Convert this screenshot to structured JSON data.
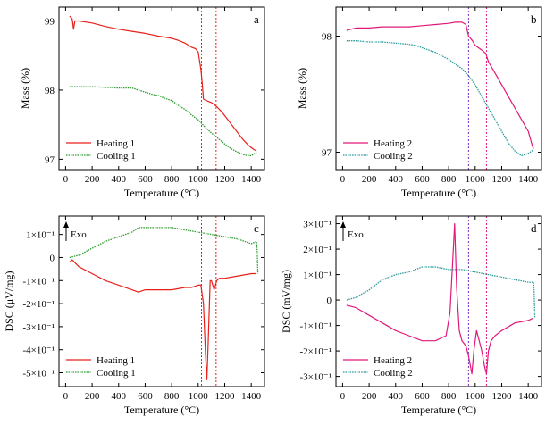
{
  "colors": {
    "heating1": "#e8201a",
    "cooling1": "#2e9a2e",
    "heating2": "#e0197a",
    "cooling2": "#2a9a9a",
    "vline1": "#e8201a",
    "vline2": "#e0197a",
    "vline3": "#7b2fbe"
  },
  "chart_data": [
    {
      "panel": "a",
      "type": "line",
      "xlabel": "Temperature (°C)",
      "ylabel": "Mass (%)",
      "xlim": [
        -50,
        1500
      ],
      "ylim": [
        96.85,
        99.2
      ],
      "xticks": [
        "0",
        "200",
        "400",
        "600",
        "800",
        "1000",
        "1200",
        "1400"
      ],
      "xtick_values": [
        0,
        200,
        400,
        600,
        800,
        1000,
        1200,
        1400
      ],
      "yticks": [
        "97",
        "98",
        "99"
      ],
      "ytick_values": [
        97,
        98,
        99
      ],
      "vlines": [
        1025,
        1135
      ],
      "vline_colors": [
        "#e8201a",
        "#e8201a"
      ],
      "legend_position": "lower-left",
      "series": [
        {
          "name": "Heating 1",
          "color": "#e8201a",
          "style": "solid",
          "x": [
            30,
            50,
            60,
            70,
            100,
            200,
            300,
            400,
            500,
            600,
            700,
            800,
            850,
            900,
            950,
            980,
            1000,
            1020,
            1030,
            1040,
            1060,
            1100,
            1140,
            1180,
            1220,
            1260,
            1300,
            1340,
            1380,
            1420,
            1440
          ],
          "y": [
            99.07,
            99.03,
            98.88,
            99.0,
            99.0,
            98.97,
            98.92,
            98.88,
            98.85,
            98.82,
            98.78,
            98.75,
            98.72,
            98.68,
            98.62,
            98.6,
            98.55,
            98.3,
            98.1,
            97.87,
            97.85,
            97.82,
            97.76,
            97.68,
            97.58,
            97.48,
            97.38,
            97.28,
            97.2,
            97.14,
            97.12
          ]
        },
        {
          "name": "Cooling 1",
          "color": "#2e9a2e",
          "style": "dotted",
          "x": [
            30,
            100,
            200,
            300,
            400,
            500,
            550,
            600,
            650,
            700,
            750,
            800,
            850,
            900,
            950,
            1000,
            1050,
            1100,
            1150,
            1200,
            1250,
            1300,
            1350,
            1400,
            1440
          ],
          "y": [
            98.05,
            98.05,
            98.05,
            98.04,
            98.03,
            98.03,
            98.0,
            97.97,
            97.94,
            97.92,
            97.88,
            97.85,
            97.78,
            97.72,
            97.64,
            97.57,
            97.47,
            97.38,
            97.3,
            97.22,
            97.15,
            97.1,
            97.06,
            97.05,
            97.1
          ]
        }
      ]
    },
    {
      "panel": "b",
      "type": "line",
      "xlabel": "Temperature (°C)",
      "ylabel": "Mass (%)",
      "xlim": [
        -50,
        1500
      ],
      "ylim": [
        96.85,
        98.25
      ],
      "xticks": [
        "0",
        "200",
        "400",
        "600",
        "800",
        "1000",
        "1200",
        "1400"
      ],
      "xtick_values": [
        0,
        200,
        400,
        600,
        800,
        1000,
        1200,
        1400
      ],
      "yticks": [
        "97",
        "98"
      ],
      "ytick_values": [
        97,
        98
      ],
      "vlines": [
        950,
        1085
      ],
      "vline_colors": [
        "#7b2fbe",
        "#e0197a"
      ],
      "legend_position": "lower-left",
      "series": [
        {
          "name": "Heating 2",
          "color": "#e0197a",
          "style": "solid",
          "x": [
            30,
            100,
            200,
            300,
            400,
            500,
            600,
            700,
            800,
            850,
            900,
            930,
            950,
            980,
            1000,
            1050,
            1080,
            1100,
            1150,
            1200,
            1250,
            1300,
            1350,
            1400,
            1430,
            1440
          ],
          "y": [
            98.05,
            98.07,
            98.07,
            98.08,
            98.08,
            98.08,
            98.09,
            98.1,
            98.11,
            98.12,
            98.12,
            98.1,
            98.0,
            97.96,
            97.92,
            97.88,
            97.85,
            97.78,
            97.68,
            97.58,
            97.48,
            97.38,
            97.28,
            97.18,
            97.06,
            97.03
          ]
        },
        {
          "name": "Cooling 2",
          "color": "#2a9a9a",
          "style": "dotted",
          "x": [
            30,
            100,
            200,
            300,
            400,
            500,
            550,
            600,
            650,
            700,
            750,
            800,
            850,
            900,
            950,
            1000,
            1050,
            1100,
            1150,
            1200,
            1250,
            1300,
            1350,
            1400,
            1440
          ],
          "y": [
            97.96,
            97.96,
            97.95,
            97.95,
            97.94,
            97.93,
            97.92,
            97.9,
            97.88,
            97.86,
            97.83,
            97.8,
            97.76,
            97.72,
            97.66,
            97.58,
            97.48,
            97.38,
            97.28,
            97.18,
            97.08,
            97.01,
            96.97,
            96.99,
            97.02
          ]
        }
      ]
    },
    {
      "panel": "c",
      "type": "line",
      "xlabel": "Temperature (°C)",
      "ylabel": "DSC (μV/mg)",
      "xlim": [
        -50,
        1500
      ],
      "ylim": [
        -0.56,
        0.18
      ],
      "xticks": [
        "0",
        "200",
        "400",
        "600",
        "800",
        "1000",
        "1200",
        "1400"
      ],
      "xtick_values": [
        0,
        200,
        400,
        600,
        800,
        1000,
        1200,
        1400
      ],
      "yticks": [
        "1×10⁻¹",
        "0",
        "-1×10⁻¹",
        "-2×10⁻¹",
        "-3×10⁻¹",
        "-4×10⁻¹",
        "-5×10⁻¹"
      ],
      "ytick_values": [
        0.1,
        0,
        -0.1,
        -0.2,
        -0.3,
        -0.4,
        -0.5
      ],
      "vlines": [
        1025,
        1135
      ],
      "vline_colors": [
        "#e8201a",
        "#e8201a"
      ],
      "annotation": "Exo",
      "legend_position": "lower-left",
      "series": [
        {
          "name": "Heating 1",
          "color": "#e8201a",
          "style": "solid",
          "x": [
            30,
            50,
            100,
            200,
            300,
            400,
            500,
            550,
            600,
            700,
            800,
            900,
            950,
            1000,
            1020,
            1040,
            1055,
            1065,
            1075,
            1090,
            1100,
            1110,
            1120,
            1140,
            1160,
            1200,
            1300,
            1400,
            1440
          ],
          "y": [
            -0.02,
            -0.01,
            -0.04,
            -0.07,
            -0.1,
            -0.12,
            -0.14,
            -0.15,
            -0.14,
            -0.14,
            -0.14,
            -0.13,
            -0.13,
            -0.12,
            -0.12,
            -0.2,
            -0.42,
            -0.53,
            -0.38,
            -0.1,
            -0.1,
            -0.12,
            -0.14,
            -0.1,
            -0.09,
            -0.09,
            -0.08,
            -0.07,
            -0.07
          ]
        },
        {
          "name": "Cooling 1",
          "color": "#2e9a2e",
          "style": "dotted",
          "x": [
            30,
            100,
            200,
            300,
            400,
            500,
            550,
            600,
            700,
            800,
            900,
            1000,
            1100,
            1200,
            1300,
            1400,
            1440,
            1445,
            1450
          ],
          "y": [
            0.0,
            0.01,
            0.04,
            0.07,
            0.09,
            0.11,
            0.13,
            0.13,
            0.13,
            0.13,
            0.12,
            0.11,
            0.1,
            0.09,
            0.08,
            0.06,
            0.07,
            0.03,
            -0.07
          ]
        }
      ]
    },
    {
      "panel": "d",
      "type": "line",
      "xlabel": "Temperature (°C)",
      "ylabel": "DSC (mV/mg)",
      "xlim": [
        -50,
        1500
      ],
      "ylim": [
        -0.34,
        0.33
      ],
      "xticks": [
        "0",
        "200",
        "400",
        "600",
        "800",
        "1000",
        "1200",
        "1400"
      ],
      "xtick_values": [
        0,
        200,
        400,
        600,
        800,
        1000,
        1200,
        1400
      ],
      "yticks": [
        "3×10⁻¹",
        "2×10⁻¹",
        "1×10⁻¹",
        "0",
        "-1×10⁻¹",
        "-2×10⁻¹",
        "-3×10⁻¹"
      ],
      "ytick_values": [
        0.3,
        0.2,
        0.1,
        0,
        -0.1,
        -0.2,
        -0.3
      ],
      "vlines": [
        950,
        1085
      ],
      "vline_colors": [
        "#7b2fbe",
        "#e0197a"
      ],
      "annotation": "Exo",
      "legend_position": "lower-left",
      "series": [
        {
          "name": "Heating 2",
          "color": "#e0197a",
          "style": "solid",
          "x": [
            30,
            100,
            200,
            300,
            400,
            500,
            600,
            700,
            780,
            810,
            830,
            845,
            860,
            880,
            900,
            930,
            950,
            975,
            990,
            1010,
            1030,
            1050,
            1070,
            1085,
            1100,
            1120,
            1150,
            1200,
            1300,
            1400,
            1440
          ],
          "y": [
            -0.02,
            -0.03,
            -0.06,
            -0.09,
            -0.12,
            -0.14,
            -0.16,
            -0.16,
            -0.14,
            -0.05,
            0.15,
            0.3,
            0.05,
            -0.12,
            -0.16,
            -0.18,
            -0.22,
            -0.29,
            -0.2,
            -0.12,
            -0.16,
            -0.2,
            -0.26,
            -0.29,
            -0.2,
            -0.16,
            -0.14,
            -0.12,
            -0.09,
            -0.08,
            -0.07
          ]
        },
        {
          "name": "Cooling 2",
          "color": "#2a9a9a",
          "style": "dotted",
          "x": [
            30,
            100,
            200,
            300,
            400,
            500,
            550,
            600,
            700,
            800,
            900,
            1000,
            1100,
            1200,
            1300,
            1400,
            1440,
            1445,
            1450
          ],
          "y": [
            0.0,
            0.01,
            0.04,
            0.08,
            0.1,
            0.11,
            0.12,
            0.13,
            0.13,
            0.12,
            0.12,
            0.11,
            0.1,
            0.09,
            0.08,
            0.07,
            0.07,
            0.03,
            -0.07
          ]
        }
      ]
    }
  ]
}
